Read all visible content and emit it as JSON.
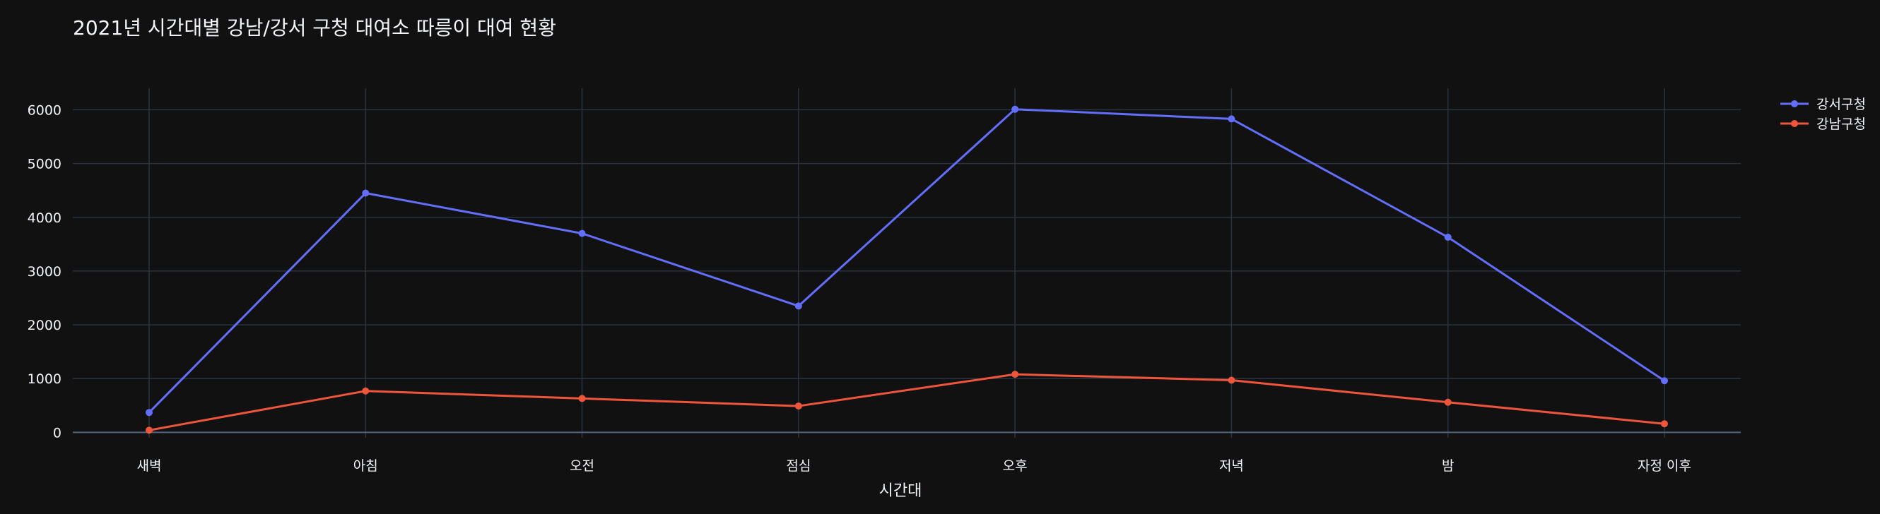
{
  "chart_data": {
    "type": "line",
    "title": "2021년 시간대별 강남/강서 구청 대여소 따릉이 대여 현황",
    "xlabel": "시간대",
    "ylabel": "",
    "categories": [
      "새벽",
      "아침",
      "오전",
      "점심",
      "오후",
      "저녁",
      "밤",
      "자정 이후"
    ],
    "ylim": [
      -100,
      6400
    ],
    "yticks": [
      0,
      1000,
      2000,
      3000,
      4000,
      5000,
      6000
    ],
    "grid": true,
    "legend_position": "top-right",
    "series": [
      {
        "name": "강서구청",
        "color": "#636efa",
        "values": [
          370,
          4450,
          3700,
          2350,
          6010,
          5830,
          3630,
          960
        ]
      },
      {
        "name": "강남구청",
        "color": "#ef553b",
        "values": [
          40,
          770,
          630,
          490,
          1080,
          970,
          560,
          160
        ]
      }
    ]
  }
}
